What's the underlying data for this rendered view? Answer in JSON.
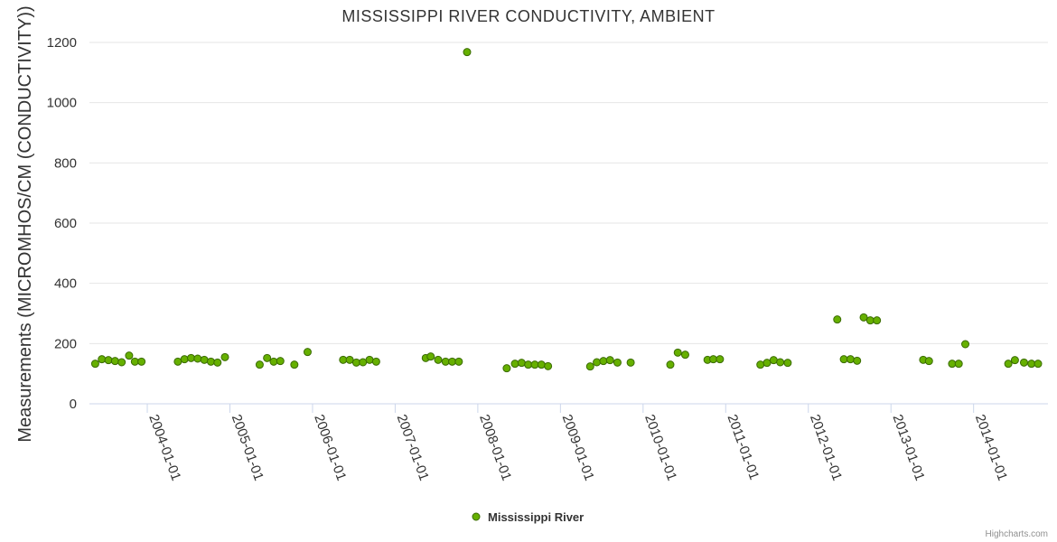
{
  "chart_data": {
    "type": "scatter",
    "title": "MISSISSIPPI RIVER CONDUCTIVITY, AMBIENT",
    "xlabel": "",
    "ylabel": "Measurements (MICROMHOS/CM (CONDUCTIVITY))",
    "xlim": [
      2003.3,
      2014.9
    ],
    "ylim": [
      0,
      1200
    ],
    "y_ticks": [
      0,
      200,
      400,
      600,
      800,
      1000,
      1200
    ],
    "x_ticks": [
      {
        "value": 2004,
        "label": "2004-01-01"
      },
      {
        "value": 2005,
        "label": "2005-01-01"
      },
      {
        "value": 2006,
        "label": "2006-01-01"
      },
      {
        "value": 2007,
        "label": "2007-01-01"
      },
      {
        "value": 2008,
        "label": "2008-01-01"
      },
      {
        "value": 2009,
        "label": "2009-01-01"
      },
      {
        "value": 2010,
        "label": "2010-01-01"
      },
      {
        "value": 2011,
        "label": "2011-01-01"
      },
      {
        "value": 2012,
        "label": "2012-01-01"
      },
      {
        "value": 2013,
        "label": "2013-01-01"
      },
      {
        "value": 2014,
        "label": "2014-01-01"
      }
    ],
    "grid": true,
    "legend_position": "bottom-center",
    "series": [
      {
        "name": "Mississippi River",
        "color": "#7cb5ec",
        "marker_fill": "#66b000",
        "marker_stroke": "#3a6b00",
        "x": [
          2003.37,
          2003.45,
          2003.53,
          2003.61,
          2003.69,
          2003.78,
          2003.85,
          2003.93,
          2004.37,
          2004.45,
          2004.53,
          2004.61,
          2004.69,
          2004.77,
          2004.85,
          2004.94,
          2005.36,
          2005.45,
          2005.53,
          2005.61,
          2005.78,
          2005.94,
          2006.37,
          2006.45,
          2006.53,
          2006.61,
          2006.69,
          2006.77,
          2007.37,
          2007.43,
          2007.52,
          2007.61,
          2007.69,
          2007.77,
          2007.87,
          2008.35,
          2008.45,
          2008.53,
          2008.61,
          2008.69,
          2008.77,
          2008.85,
          2009.36,
          2009.44,
          2009.52,
          2009.6,
          2009.69,
          2009.85,
          2010.33,
          2010.42,
          2010.51,
          2010.78,
          2010.85,
          2010.93,
          2011.42,
          2011.5,
          2011.58,
          2011.66,
          2011.75,
          2012.35,
          2012.43,
          2012.51,
          2012.59,
          2012.67,
          2012.75,
          2012.83,
          2013.39,
          2013.46,
          2013.74,
          2013.82,
          2013.9,
          2014.42,
          2014.5,
          2014.61,
          2014.7,
          2014.78
        ],
        "y": [
          133,
          148,
          145,
          142,
          138,
          160,
          140,
          140,
          140,
          148,
          152,
          150,
          146,
          140,
          137,
          155,
          130,
          152,
          140,
          142,
          130,
          172,
          146,
          146,
          137,
          138,
          146,
          140,
          152,
          157,
          146,
          140,
          140,
          140,
          1168,
          118,
          133,
          136,
          130,
          130,
          130,
          125,
          124,
          138,
          142,
          145,
          137,
          137,
          130,
          170,
          163,
          146,
          148,
          148,
          130,
          136,
          145,
          138,
          136,
          280,
          148,
          148,
          143,
          287,
          277,
          277,
          146,
          142,
          133,
          133,
          198,
          133,
          145,
          137,
          133,
          133
        ]
      }
    ]
  },
  "credits": "Highcharts.com"
}
